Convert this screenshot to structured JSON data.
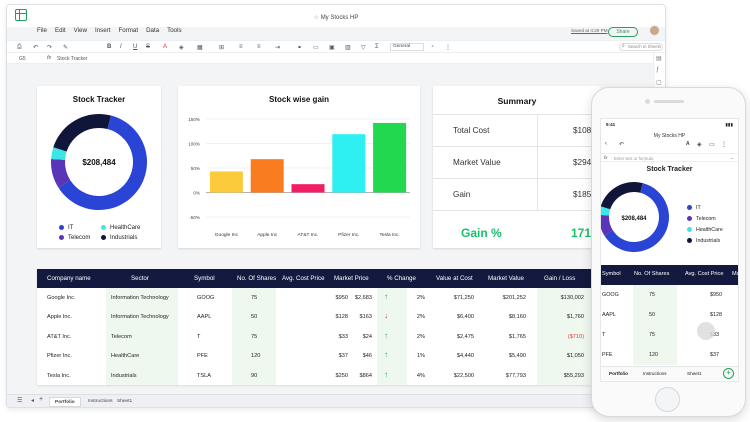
{
  "window": {
    "title": "My Stocks HP"
  },
  "menu": [
    "File",
    "Edit",
    "View",
    "Insert",
    "Format",
    "Data",
    "Tools"
  ],
  "header": {
    "saved": "Saved at 4:29 PM",
    "share": "Share"
  },
  "toolbar": {
    "font": "General",
    "search_placeholder": "Search In Sheets"
  },
  "formula_bar": {
    "cell": "G5",
    "fx": "fx",
    "value": "Stock Tracker"
  },
  "stock_tracker": {
    "title": "Stock Tracker",
    "total": "$208,484",
    "legend": [
      {
        "label": "IT",
        "color": "#2a45d6"
      },
      {
        "label": "HealthCare",
        "color": "#3de6e6"
      },
      {
        "label": "Telecom",
        "color": "#5b35b8"
      },
      {
        "label": "Industrials",
        "color": "#10163a"
      }
    ]
  },
  "chart_data": {
    "type": "bar",
    "title": "Stock wise gain",
    "categories": [
      "Google Inc",
      "Apple Inc",
      "AT&T Inc.",
      "Pfizer Inc.",
      "Tesla Inc."
    ],
    "values": [
      43,
      68,
      17,
      119,
      142
    ],
    "colors": [
      "#fccb3b",
      "#f97c1f",
      "#f11e64",
      "#2ef0f2",
      "#22d84f"
    ],
    "ylim": [
      -50,
      150
    ],
    "yticks": [
      "150%",
      "100%",
      "50%",
      "0%",
      "-50%"
    ],
    "ytick_values": [
      150,
      100,
      50,
      0,
      -50
    ],
    "grid": true
  },
  "donut": {
    "segments": [
      {
        "name": "IT",
        "value": 62,
        "color": "#2a45d6"
      },
      {
        "name": "Telecom",
        "value": 10,
        "color": "#5b35b8"
      },
      {
        "name": "HealthCare",
        "value": 4,
        "color": "#3de6e6"
      },
      {
        "name": "Industrials",
        "value": 24,
        "color": "#10163a"
      }
    ]
  },
  "summary": {
    "title": "Summary",
    "rows": [
      {
        "label": "Total Cost",
        "value": "$108"
      },
      {
        "label": "Market Value",
        "value": "$294"
      },
      {
        "label": "Gain",
        "value": "$185"
      }
    ],
    "gain_pct_label": "Gain %",
    "gain_pct_value": "171"
  },
  "table": {
    "headers": [
      "Company name",
      "Sector",
      "Symbol",
      "No. Of Shares",
      "Avg. Cost Price",
      "Market Price",
      "% Change",
      "Value at Cost",
      "Market Value",
      "Gain / Loss"
    ],
    "rows": [
      {
        "company": "Google Inc.",
        "sector": "Information Technology",
        "symbol": "GOOG",
        "shares": "75",
        "avg": "$950",
        "market": "$2,683",
        "dir": "up",
        "pct": "2%",
        "cost": "$71,250",
        "mval": "$201,252",
        "gain": "$130,002"
      },
      {
        "company": "Apple Inc.",
        "sector": "Information Technology",
        "symbol": "AAPL",
        "shares": "50",
        "avg": "$128",
        "market": "$163",
        "dir": "down",
        "pct": "2%",
        "cost": "$6,400",
        "mval": "$8,160",
        "gain": "$1,760"
      },
      {
        "company": "AT&T Inc.",
        "sector": "Telecom",
        "symbol": "T",
        "shares": "75",
        "avg": "$33",
        "market": "$24",
        "dir": "up",
        "pct": "2%",
        "cost": "$2,475",
        "mval": "$1,765",
        "gain": "($710)"
      },
      {
        "company": "Pfizer Inc.",
        "sector": "HealthCare",
        "symbol": "PFE",
        "shares": "120",
        "avg": "$37",
        "market": "$46",
        "dir": "up",
        "pct": "1%",
        "cost": "$4,440",
        "mval": "$5,490",
        "gain": "$1,050"
      },
      {
        "company": "Tesla Inc.",
        "sector": "Industrials",
        "symbol": "TSLA",
        "shares": "90",
        "avg": "$250",
        "market": "$864",
        "dir": "up",
        "pct": "4%",
        "cost": "$22,500",
        "mval": "$77,793",
        "gain": "$55,293"
      }
    ]
  },
  "sheets": {
    "portfolio": "Portfolio",
    "instructions": "Instructions",
    "sheet1": "Sheet1"
  },
  "phone": {
    "time": "9:41",
    "title": "My Stocks HP",
    "formula_placeholder": "Enter text or formula",
    "card_title": "Stock Tracker",
    "total": "$208,484",
    "legend": [
      "IT",
      "Telecom",
      "HealthCare",
      "Industrials"
    ],
    "headers": [
      "Symbol",
      "No. Of Shares",
      "Avg. Cost Price",
      "Ma"
    ],
    "rows": [
      {
        "symbol": "GOOG",
        "shares": "75",
        "avg": "$950"
      },
      {
        "symbol": "AAPL",
        "shares": "50",
        "avg": "$128"
      },
      {
        "symbol": "T",
        "shares": "75",
        "avg": "$33"
      },
      {
        "symbol": "PFE",
        "shares": "120",
        "avg": "$37"
      }
    ],
    "tabs": [
      "Portfolio",
      "Instructions",
      "Sheet1"
    ]
  }
}
